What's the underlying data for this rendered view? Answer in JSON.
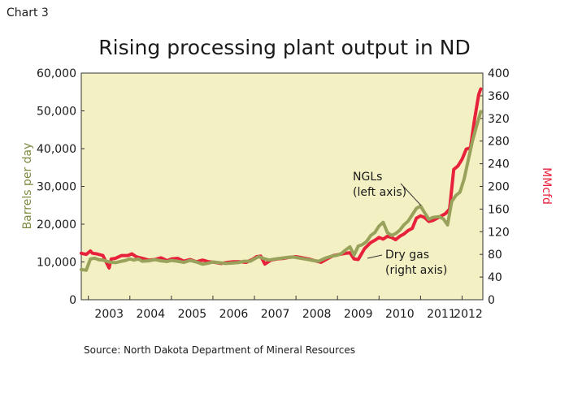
{
  "header": {
    "chart_number": "Chart 3",
    "title": "Rising processing plant output in ND",
    "source": "Source: North Dakota Department of Mineral Resources"
  },
  "colors": {
    "plot_background": "#f3f0c4",
    "ngl_line": "#99a25b",
    "dry_gas_line": "#e8213b",
    "left_axis_label": "#7f8a42",
    "right_axis_label": "#e8213b"
  },
  "chart_data": {
    "type": "line",
    "title": "Rising processing plant output in ND",
    "ylabel": "Barrels per day",
    "y2label": "MMcfd",
    "ylim": [
      0,
      60000
    ],
    "y2lim": [
      0,
      400
    ],
    "xlim": [
      2002.83,
      2012.5
    ],
    "y_ticks": [
      "0",
      "10,000",
      "20,000",
      "30,000",
      "40,000",
      "50,000",
      "60,000"
    ],
    "y2_ticks": [
      "0",
      "40",
      "80",
      "120",
      "160",
      "200",
      "240",
      "280",
      "320",
      "360",
      "400"
    ],
    "x_ticks": [
      "2003",
      "2004",
      "2005",
      "2006",
      "2007",
      "2008",
      "2009",
      "2010",
      "2011",
      "2012"
    ],
    "grid": false,
    "annotations": [
      {
        "id": "ngl",
        "line1": "NGLs",
        "line2": "(left axis)"
      },
      {
        "id": "gas",
        "line1": "Dry gas",
        "line2": "(right axis)"
      }
    ],
    "series": [
      {
        "name": "NGLs",
        "axis": "left",
        "x": [
          2002.83,
          2002.95,
          2003.05,
          2003.15,
          2003.25,
          2003.35,
          2003.5,
          2003.65,
          2003.8,
          2003.9,
          2004.0,
          2004.1,
          2004.2,
          2004.3,
          2004.45,
          2004.6,
          2004.75,
          2004.9,
          2005.0,
          2005.15,
          2005.3,
          2005.45,
          2005.6,
          2005.75,
          2005.9,
          2006.0,
          2006.15,
          2006.3,
          2006.45,
          2006.6,
          2006.75,
          2006.9,
          2007.0,
          2007.1,
          2007.2,
          2007.35,
          2007.5,
          2007.65,
          2007.8,
          2007.95,
          2008.1,
          2008.25,
          2008.4,
          2008.55,
          2008.7,
          2008.85,
          2009.0,
          2009.1,
          2009.2,
          2009.3,
          2009.4,
          2009.5,
          2009.6,
          2009.7,
          2009.8,
          2009.9,
          2010.0,
          2010.1,
          2010.2,
          2010.3,
          2010.4,
          2010.5,
          2010.6,
          2010.7,
          2010.8,
          2010.9,
          2011.0,
          2011.1,
          2011.2,
          2011.3,
          2011.45,
          2011.55,
          2011.65,
          2011.75,
          2011.85,
          2011.95,
          2012.05,
          2012.15,
          2012.25,
          2012.35,
          2012.45
        ],
        "values": [
          8000,
          7800,
          10800,
          11000,
          10600,
          10500,
          10000,
          9800,
          10200,
          10400,
          10800,
          10500,
          10800,
          10200,
          10300,
          10600,
          10300,
          10100,
          10400,
          10200,
          9900,
          10400,
          10000,
          9400,
          9700,
          10000,
          9800,
          9600,
          9700,
          9800,
          10200,
          10200,
          10800,
          11400,
          11000,
          10500,
          10800,
          11000,
          11200,
          11300,
          11000,
          10700,
          10400,
          10200,
          11000,
          11500,
          11800,
          12300,
          13200,
          14000,
          11800,
          14200,
          14600,
          15400,
          17000,
          17800,
          19500,
          20500,
          17800,
          17000,
          17500,
          18400,
          19800,
          20800,
          22500,
          24200,
          24800,
          23000,
          21300,
          21800,
          22000,
          21400,
          19800,
          26000,
          27600,
          28500,
          32000,
          37000,
          42000,
          46000,
          49800
        ]
      },
      {
        "name": "Dry gas",
        "axis": "right",
        "x": [
          2002.83,
          2002.95,
          2003.05,
          2003.1,
          2003.2,
          2003.35,
          2003.5,
          2003.55,
          2003.65,
          2003.8,
          2003.95,
          2004.05,
          2004.15,
          2004.3,
          2004.45,
          2004.6,
          2004.75,
          2004.9,
          2005.0,
          2005.15,
          2005.3,
          2005.45,
          2005.6,
          2005.75,
          2005.9,
          2006.05,
          2006.2,
          2006.35,
          2006.5,
          2006.65,
          2006.8,
          2006.95,
          2007.05,
          2007.15,
          2007.25,
          2007.4,
          2007.55,
          2007.7,
          2007.85,
          2008.0,
          2008.15,
          2008.3,
          2008.45,
          2008.6,
          2008.75,
          2008.9,
          2009.05,
          2009.2,
          2009.3,
          2009.4,
          2009.5,
          2009.65,
          2009.8,
          2009.9,
          2010.0,
          2010.1,
          2010.2,
          2010.3,
          2010.4,
          2010.5,
          2010.6,
          2010.7,
          2010.8,
          2010.9,
          2011.0,
          2011.1,
          2011.2,
          2011.3,
          2011.45,
          2011.6,
          2011.7,
          2011.8,
          2011.9,
          2012.0,
          2012.1,
          2012.2,
          2012.3,
          2012.4,
          2012.45
        ],
        "values": [
          82,
          80,
          86,
          82,
          81,
          78,
          56,
          72,
          73,
          78,
          78,
          81,
          76,
          73,
          70,
          71,
          74,
          69,
          72,
          73,
          68,
          71,
          67,
          70,
          67,
          66,
          64,
          66,
          67,
          67,
          66,
          71,
          76,
          77,
          63,
          70,
          72,
          73,
          75,
          76,
          74,
          72,
          69,
          66,
          72,
          78,
          80,
          82,
          83,
          72,
          71,
          90,
          101,
          105,
          110,
          107,
          112,
          110,
          106,
          112,
          116,
          122,
          126,
          144,
          148,
          145,
          138,
          140,
          146,
          152,
          160,
          230,
          236,
          248,
          266,
          268,
          318,
          362,
          372
        ]
      }
    ]
  }
}
